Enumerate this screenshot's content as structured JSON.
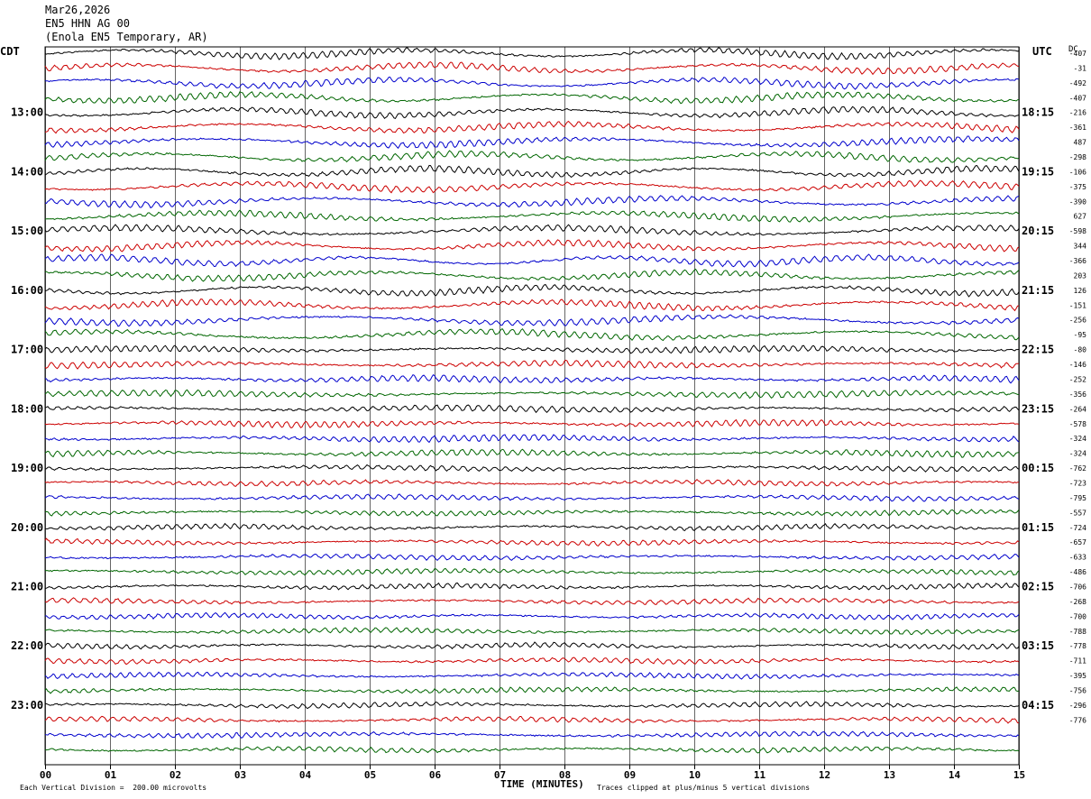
{
  "header": {
    "date": "Mar26,2026",
    "channel": "EN5 HHN AG 00",
    "station": "(Enola EN5 Temporary, AR)"
  },
  "left_axis": {
    "label": "CDT"
  },
  "right_axis": {
    "label": "UTC",
    "dc_label": "DC"
  },
  "footer": {
    "scale_note": "Each Vertical Division =  200.00 microvolts",
    "xlabel": "TIME (MINUTES)",
    "clip_note": "Traces clipped at plus/minus 5 vertical divisions"
  },
  "colors": {
    "cycle": [
      "#000000",
      "#cc0000",
      "#0000cc",
      "#006600"
    ],
    "grid": "#000000"
  },
  "chart_data": {
    "type": "line",
    "title": "Mar26,2026",
    "xlabel": "TIME (MINUTES)",
    "ylabel": "",
    "x_range": [
      0,
      15
    ],
    "x_ticks": [
      "00",
      "01",
      "02",
      "03",
      "04",
      "05",
      "06",
      "07",
      "08",
      "09",
      "10",
      "11",
      "12",
      "13",
      "14",
      "15"
    ],
    "trace_count": 48,
    "trace_minutes": 15,
    "left_time_labels": [
      {
        "trace": 4,
        "text": "13:00"
      },
      {
        "trace": 8,
        "text": "14:00"
      },
      {
        "trace": 12,
        "text": "15:00"
      },
      {
        "trace": 16,
        "text": "16:00"
      },
      {
        "trace": 20,
        "text": "17:00"
      },
      {
        "trace": 24,
        "text": "18:00"
      },
      {
        "trace": 28,
        "text": "19:00"
      },
      {
        "trace": 32,
        "text": "20:00"
      },
      {
        "trace": 36,
        "text": "21:00"
      },
      {
        "trace": 40,
        "text": "22:00"
      },
      {
        "trace": 44,
        "text": "23:00"
      }
    ],
    "right_time_labels": [
      {
        "trace": 4,
        "text": "18:15"
      },
      {
        "trace": 8,
        "text": "19:15"
      },
      {
        "trace": 12,
        "text": "20:15"
      },
      {
        "trace": 16,
        "text": "21:15"
      },
      {
        "trace": 20,
        "text": "22:15"
      },
      {
        "trace": 24,
        "text": "23:15"
      },
      {
        "trace": 28,
        "text": "00:15"
      },
      {
        "trace": 32,
        "text": "01:15"
      },
      {
        "trace": 36,
        "text": "02:15"
      },
      {
        "trace": 40,
        "text": "03:15"
      },
      {
        "trace": 44,
        "text": "04:15"
      }
    ],
    "dc_offsets": [
      "-407",
      "-31",
      "-492",
      "-407",
      "-216",
      "-361",
      "487",
      "-298",
      "-106",
      "-375",
      "-390",
      "627",
      "-598",
      "344",
      "-366",
      "203",
      "126",
      "-151",
      "-256",
      "-95",
      "-80",
      "-146",
      "-252",
      "-356",
      "-264",
      "-578",
      "-324",
      "-324",
      "-762",
      "-723",
      "-795",
      "-557",
      "-724",
      "-657",
      "-633",
      "-486",
      "-706",
      "-268",
      "-700",
      "-788",
      "-778",
      "-711",
      "-395",
      "-756",
      "-296",
      "-776"
    ],
    "series_colors": [
      "black",
      "red",
      "blue",
      "green"
    ]
  }
}
